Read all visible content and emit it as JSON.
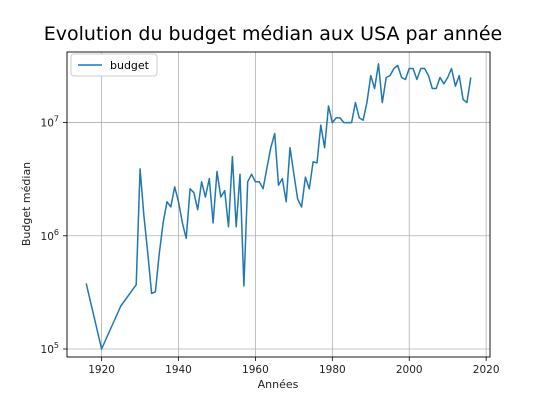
{
  "chart_data": {
    "type": "line",
    "title": "Evolution du budget médian aux USA par année",
    "xlabel": "Années",
    "ylabel": "Budget médian",
    "xlim": [
      1911,
      2021
    ],
    "ylim": [
      85000,
      42000000
    ],
    "yscale": "log",
    "grid": true,
    "legend": "top-left",
    "x_ticks": [
      1920,
      1940,
      1960,
      1980,
      2000,
      2020
    ],
    "y_ticks": [
      {
        "value": 100000,
        "base": "10",
        "exp": "5"
      },
      {
        "value": 1000000,
        "base": "10",
        "exp": "6"
      },
      {
        "value": 10000000,
        "base": "10",
        "exp": "7"
      }
    ],
    "series": [
      {
        "name": "budget",
        "color": "#1f77b4",
        "x": [
          1916,
          1920,
          1925,
          1929,
          1930,
          1931,
          1932,
          1933,
          1934,
          1935,
          1936,
          1937,
          1938,
          1939,
          1940,
          1941,
          1942,
          1943,
          1944,
          1945,
          1946,
          1947,
          1948,
          1949,
          1950,
          1951,
          1952,
          1953,
          1954,
          1955,
          1956,
          1957,
          1958,
          1959,
          1960,
          1961,
          1962,
          1963,
          1964,
          1965,
          1966,
          1967,
          1968,
          1969,
          1970,
          1971,
          1972,
          1973,
          1974,
          1975,
          1976,
          1977,
          1978,
          1979,
          1980,
          1981,
          1982,
          1983,
          1984,
          1985,
          1986,
          1987,
          1988,
          1989,
          1990,
          1991,
          1992,
          1993,
          1994,
          1995,
          1996,
          1997,
          1998,
          1999,
          2000,
          2001,
          2002,
          2003,
          2004,
          2005,
          2006,
          2007,
          2008,
          2009,
          2010,
          2011,
          2012,
          2013,
          2014,
          2015,
          2016
        ],
        "y": [
          380000,
          100000,
          240000,
          370000,
          3900000,
          1500000,
          700000,
          310000,
          320000,
          700000,
          1300000,
          2000000,
          1800000,
          2700000,
          2000000,
          1300000,
          950000,
          2600000,
          2400000,
          1700000,
          3000000,
          2200000,
          3200000,
          1300000,
          3700000,
          2200000,
          2500000,
          1200000,
          5000000,
          1200000,
          3500000,
          360000,
          3000000,
          3500000,
          3000000,
          3000000,
          2600000,
          4000000,
          6000000,
          8000000,
          2800000,
          3200000,
          2000000,
          6000000,
          3500000,
          2100000,
          1800000,
          3300000,
          2600000,
          4500000,
          4400000,
          9500000,
          6000000,
          14000000,
          10000000,
          11000000,
          11000000,
          10000000,
          10000000,
          10000000,
          15000000,
          11000000,
          10500000,
          15000000,
          26000000,
          20000000,
          33000000,
          15000000,
          25000000,
          26000000,
          30000000,
          32000000,
          25000000,
          24000000,
          30000000,
          30000000,
          24000000,
          30000000,
          30000000,
          26000000,
          20000000,
          20000000,
          25000000,
          22000000,
          25000000,
          30000000,
          21000000,
          26000000,
          16000000,
          15000000,
          25000000
        ]
      }
    ]
  }
}
